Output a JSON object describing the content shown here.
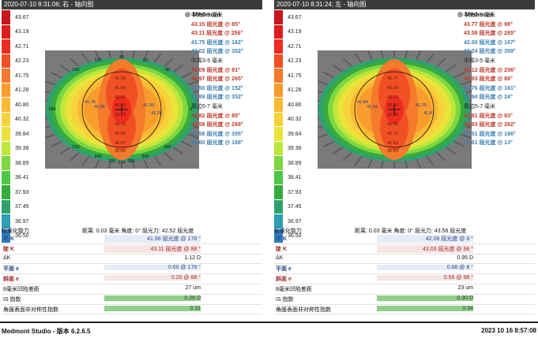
{
  "brand": "Medmont",
  "scale_colors": [
    "#c7161e",
    "#dd1d1d",
    "#ee2c20",
    "#f15025",
    "#f47a2c",
    "#f99c2e",
    "#fab833",
    "#f7d23a",
    "#e9e33a",
    "#bde73d",
    "#7ed740",
    "#4ec746",
    "#37ac3c",
    "#2ea16e",
    "#2e9fb4",
    "#2f7dbf",
    "#2d53aa",
    "#2a34a0",
    "#26238c",
    "#1d1a72"
  ],
  "scale_labels": [
    "43.67",
    "43.19",
    "42.71",
    "42.23",
    "41.75",
    "41.28",
    "40.80",
    "40.32",
    "39.84",
    "39.36",
    "38.89",
    "38.41",
    "37.93",
    "37.45",
    "36.97",
    "36.50"
  ],
  "status_bar": {
    "app": "Medmont Studio - 版本 6.2.6.5",
    "datetime": "2023 10 16 8:57:08"
  },
  "panels": [
    {
      "title": "2020-07-10  8:31:06; 右 - 轴向图",
      "readouts": [
        {
          "text": "中央0-3 毫米",
          "style": "head"
        },
        {
          "text": "43.15 屈光度 @ 85°",
          "style": "red"
        },
        {
          "text": "43.11 屈光度 @ 256°",
          "style": "red"
        },
        {
          "text": "41.75 屈光度 @ 162°",
          "style": "blue"
        },
        {
          "text": "42.02 屈光度 @ 352°",
          "style": "blue"
        },
        {
          "text": "中周3-5 毫米",
          "style": "head"
        },
        {
          "text": "43.09 屈光度 @ 91°",
          "style": "red"
        },
        {
          "text": "42.97 屈光度 @ 265°",
          "style": "red"
        },
        {
          "text": "41.50 屈光度 @ 152°",
          "style": "blue"
        },
        {
          "text": "41.89 屈光度 @ 352°",
          "style": "blue"
        },
        {
          "text": "周边5-7 毫米",
          "style": "head"
        },
        {
          "text": "42.82 屈光度 @ 85°",
          "style": "red"
        },
        {
          "text": "42.58 屈光度 @ 269°",
          "style": "red"
        },
        {
          "text": "41.56 屈光度 @ 355°",
          "style": "blue"
        },
        {
          "text": "41.60 屈光度 @ 168°",
          "style": "blue"
        }
      ],
      "map_values": [
        "42.05",
        "41.68",
        "42.01",
        "41.83",
        "43.15",
        "42.15",
        "42.92",
        "42.57",
        "42.66"
      ],
      "map_side": [
        "41.76",
        "41.86",
        "41.36",
        "41.28"
      ],
      "axis_labels": [
        "90",
        "120",
        "60",
        "150",
        "30",
        "180",
        "0",
        "210",
        "330",
        "240",
        "300",
        "255",
        "270",
        "285"
      ],
      "footer_left": "标准化能力",
      "footer_right": "距离: 0.03 毫米  角度: 0°  屈光力: 42.52 屈光度",
      "stats": [
        {
          "label": "平 K",
          "value": "41.98 屈光度 @ 178 °",
          "style": "blue"
        },
        {
          "label": "陡 K",
          "value": "43.11 屈光度 @ 88 °",
          "style": "red"
        },
        {
          "label": "ΔK",
          "value": "1.12 D",
          "style": ""
        },
        {
          "label": "平面 e",
          "value": "0.60 @ 178 °",
          "style": "blue"
        },
        {
          "label": "斜面 e",
          "value": "0.20 @ 88 °",
          "style": "red"
        },
        {
          "label": "8毫米凹陷差距",
          "value": "27 um",
          "style": ""
        },
        {
          "label": "IS 指数",
          "value": "0.26 D",
          "style": "green"
        },
        {
          "label": "角膜表面非对称性指数",
          "value": "0.31",
          "style": "green"
        }
      ]
    },
    {
      "title": "2020-07-10  8:31:24; 左 - 轴向图",
      "readouts": [
        {
          "text": "中央0-3 毫米",
          "style": "head"
        },
        {
          "text": "43.77 屈光度 @ 98°",
          "style": "red"
        },
        {
          "text": "43.58 屈光度 @ 265°",
          "style": "red"
        },
        {
          "text": "42.00 屈光度 @ 167°",
          "style": "blue"
        },
        {
          "text": "42.24 屈光度 @ 359°",
          "style": "blue"
        },
        {
          "text": "中周3-5 毫米",
          "style": "head"
        },
        {
          "text": "43.12 屈光度 @ 256°",
          "style": "red"
        },
        {
          "text": "42.93 屈光度 @ 86°",
          "style": "red"
        },
        {
          "text": "41.76 屈光度 @ 161°",
          "style": "blue"
        },
        {
          "text": "41.94 屈光度 @ 24°",
          "style": "blue"
        },
        {
          "text": "周边5-7 毫米",
          "style": "head"
        },
        {
          "text": "42.81 屈光度 @ 83°",
          "style": "red"
        },
        {
          "text": "42.83 屈光度 @ 262°",
          "style": "red"
        },
        {
          "text": "41.51 屈光度 @ 166°",
          "style": "blue"
        },
        {
          "text": "41.81 屈光度 @ 13°",
          "style": "blue"
        }
      ],
      "map_values": [
        "42.77",
        "42.93",
        "43.15",
        "43.44",
        "42.30",
        "43.58",
        "42.71",
        "42.63",
        "42.53"
      ],
      "map_side": [
        "41.84",
        "41.94",
        "41.75",
        "41.81"
      ],
      "axis_labels": [
        "",
        "",
        "",
        "",
        "",
        "",
        "",
        "",
        "",
        "",
        "",
        "",
        "",
        ""
      ],
      "footer_left": "标准化能力",
      "footer_right": "距离: 0.03 毫米  角度: 0°  屈光力: 43.56 屈光度",
      "stats": [
        {
          "label": "平 K",
          "value": "42.08 屈光度 @ 8 °",
          "style": "blue"
        },
        {
          "label": "陡 K",
          "value": "43.03 屈光度 @ 98 °",
          "style": "red"
        },
        {
          "label": "ΔK",
          "value": "0.95 D",
          "style": ""
        },
        {
          "label": "平面 e",
          "value": "0.68 @ 8 °",
          "style": "blue"
        },
        {
          "label": "斜面 e",
          "value": "0.56 @ 98 °",
          "style": "red"
        },
        {
          "label": "8毫米凹陷差距",
          "value": "23 um",
          "style": ""
        },
        {
          "label": "IS 指数",
          "value": "0.30 D",
          "style": "green"
        },
        {
          "label": "角膜表面非对称性指数",
          "value": "0.34",
          "style": "green"
        }
      ]
    }
  ]
}
